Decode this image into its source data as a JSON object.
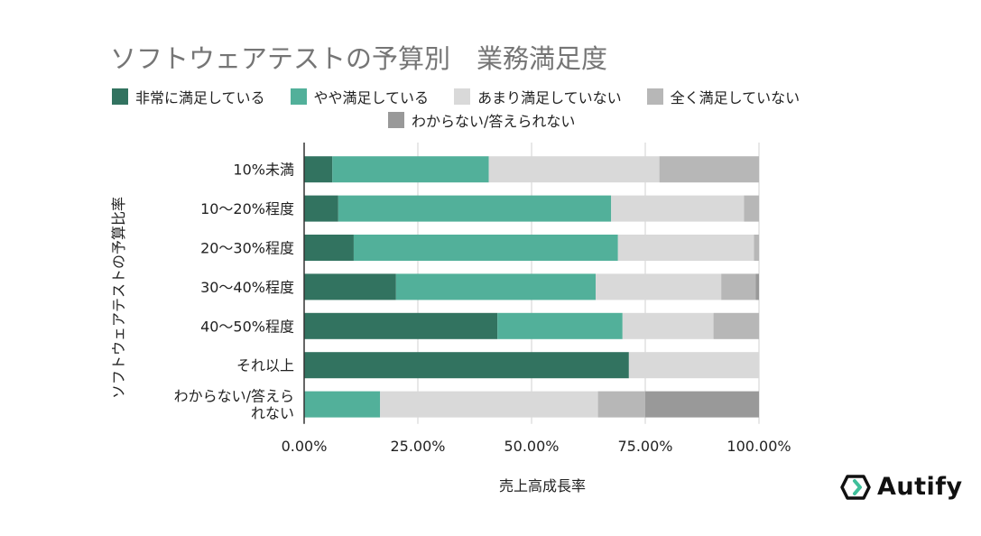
{
  "chart_data": {
    "type": "bar",
    "orientation": "horizontal",
    "stacked": true,
    "title": "ソフトウェアテストの予算別　業務満足度",
    "xlabel": "売上高成長率",
    "ylabel": "ソフトウェアテストの予算比率",
    "xlim": [
      0,
      100
    ],
    "xticks": [
      "0.00%",
      "25.00%",
      "50.00%",
      "75.00%",
      "100.00%"
    ],
    "categories": [
      "10%未満",
      "10〜20%程度",
      "20〜30%程度",
      "30〜40%程度",
      "40〜50%程度",
      "それ以上",
      "わからない/答えられない"
    ],
    "category_lines": [
      [
        "10%未満"
      ],
      [
        "10〜20%程度"
      ],
      [
        "20〜30%程度"
      ],
      [
        "30〜40%程度"
      ],
      [
        "40〜50%程度"
      ],
      [
        "それ以上"
      ],
      [
        "わからない/答えら",
        "れない"
      ]
    ],
    "series": [
      {
        "name": "非常に満足している",
        "color": "#327360",
        "values": [
          6.2,
          7.5,
          10.9,
          20.2,
          42.5,
          71.4,
          0
        ]
      },
      {
        "name": "やや満足している",
        "color": "#52b09a",
        "values": [
          34.4,
          60.0,
          58.1,
          43.9,
          27.5,
          0,
          16.7
        ]
      },
      {
        "name": "あまり満足していない",
        "color": "#d9d9d9",
        "values": [
          37.5,
          29.2,
          29.9,
          27.6,
          20.0,
          28.6,
          47.9
        ]
      },
      {
        "name": "全く満足していない",
        "color": "#b7b7b7",
        "values": [
          21.9,
          3.3,
          1.1,
          7.6,
          10.0,
          0,
          10.4
        ]
      },
      {
        "name": "わからない/答えられない",
        "color": "#999999",
        "values": [
          0,
          0,
          0,
          0.7,
          0,
          0,
          25.0
        ]
      }
    ],
    "legend_position": "top",
    "grid": true
  },
  "brand": {
    "name": "Autify"
  }
}
